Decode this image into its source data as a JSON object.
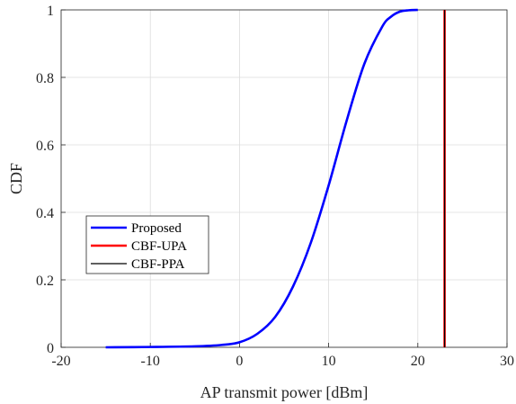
{
  "chart_data": {
    "type": "line",
    "xlabel": "AP transmit power [dBm]",
    "ylabel": "CDF",
    "xlim": [
      -20,
      30
    ],
    "ylim": [
      0,
      1
    ],
    "xticks": [
      -20,
      -10,
      0,
      10,
      20,
      30
    ],
    "yticks": [
      0,
      0.2,
      0.4,
      0.6,
      0.8,
      1
    ],
    "xtick_labels": [
      "-20",
      "-10",
      "0",
      "10",
      "20",
      "30"
    ],
    "ytick_labels": [
      "0",
      "0.2",
      "0.4",
      "0.6",
      "0.8",
      "1"
    ],
    "grid": true,
    "legend_position": "lower-left",
    "series": [
      {
        "name": "Proposed",
        "color": "#0000ff",
        "x": [
          -15,
          -10,
          -5,
          -2,
          0,
          2,
          4,
          6,
          8,
          10,
          12,
          14,
          16,
          17,
          18,
          19,
          20
        ],
        "y": [
          0.0,
          0.001,
          0.003,
          0.007,
          0.015,
          0.04,
          0.09,
          0.18,
          0.31,
          0.48,
          0.67,
          0.84,
          0.95,
          0.98,
          0.995,
          0.999,
          1.0
        ]
      },
      {
        "name": "CBF-UPA",
        "color": "#ff0000",
        "x": [
          23,
          23
        ],
        "y": [
          0,
          1
        ]
      },
      {
        "name": "CBF-PPA",
        "color": "#000000",
        "x": [
          23,
          23
        ],
        "y": [
          0,
          1
        ]
      }
    ]
  }
}
